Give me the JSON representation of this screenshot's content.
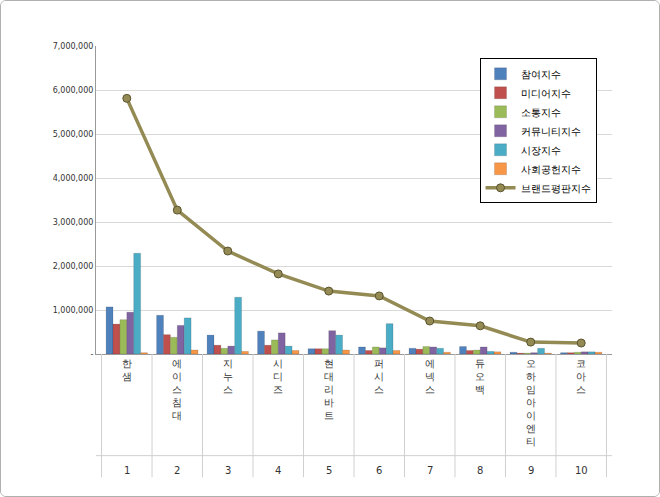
{
  "chart_data": {
    "type": "bar",
    "categories": [
      "한샘",
      "에이스침대",
      "지누스",
      "시디즈",
      "현대리바트",
      "퍼시스",
      "에넥스",
      "듀오백",
      "오하임아이엔티",
      "코아스"
    ],
    "ranks": [
      1,
      2,
      3,
      4,
      5,
      6,
      7,
      8,
      9,
      10
    ],
    "series": [
      {
        "name": "참여지수",
        "type": "bar",
        "color": "#4F81BD",
        "values": [
          1070000,
          880000,
          430000,
          520000,
          120000,
          160000,
          130000,
          170000,
          40000,
          30000
        ]
      },
      {
        "name": "미디어지수",
        "type": "bar",
        "color": "#C0504D",
        "values": [
          680000,
          440000,
          200000,
          200000,
          120000,
          80000,
          110000,
          80000,
          20000,
          30000
        ]
      },
      {
        "name": "소통지수",
        "type": "bar",
        "color": "#9BBB59",
        "values": [
          780000,
          380000,
          130000,
          320000,
          120000,
          160000,
          170000,
          90000,
          20000,
          40000
        ]
      },
      {
        "name": "커뮤니티지수",
        "type": "bar",
        "color": "#8064A2",
        "values": [
          950000,
          650000,
          180000,
          480000,
          530000,
          140000,
          160000,
          160000,
          30000,
          50000
        ]
      },
      {
        "name": "시장지수",
        "type": "bar",
        "color": "#4BACC6",
        "values": [
          2290000,
          820000,
          1290000,
          180000,
          430000,
          690000,
          130000,
          60000,
          130000,
          50000
        ]
      },
      {
        "name": "사회공헌지수",
        "type": "bar",
        "color": "#F79646",
        "values": [
          30000,
          90000,
          60000,
          80000,
          90000,
          80000,
          40000,
          50000,
          20000,
          40000
        ]
      },
      {
        "name": "브랜드평판지수",
        "type": "line",
        "marker": "circle",
        "color": "#948A54",
        "values": [
          5810000,
          3270000,
          2340000,
          1820000,
          1430000,
          1320000,
          750000,
          640000,
          270000,
          250000
        ]
      }
    ],
    "ylim": [
      0,
      7000000
    ],
    "yticks": [
      {
        "value": 0,
        "label": "-"
      },
      {
        "value": 1000000,
        "label": "1,000,000"
      },
      {
        "value": 2000000,
        "label": "2,000,000"
      },
      {
        "value": 3000000,
        "label": "3,000,000"
      },
      {
        "value": 4000000,
        "label": "4,000,000"
      },
      {
        "value": 5000000,
        "label": "5,000,000"
      },
      {
        "value": 6000000,
        "label": "6,000,000"
      },
      {
        "value": 7000000,
        "label": "7,000,000"
      }
    ],
    "grid": true,
    "legend": "upper right"
  }
}
